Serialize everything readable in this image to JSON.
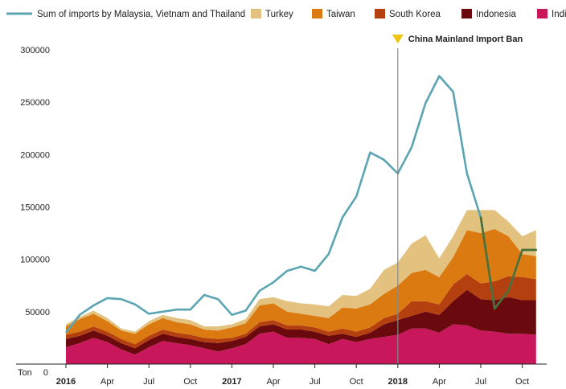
{
  "chart_data": {
    "type": "area",
    "title": "",
    "ylabel": "Ton",
    "ylim": [
      0,
      300000
    ],
    "y_ticks": [
      0,
      50000,
      100000,
      150000,
      200000,
      250000,
      300000
    ],
    "x_ticks": [
      {
        "month": "2016-01",
        "label": "2016",
        "bold": true
      },
      {
        "month": "2016-04",
        "label": "Apr",
        "bold": false
      },
      {
        "month": "2016-07",
        "label": "Jul",
        "bold": false
      },
      {
        "month": "2016-10",
        "label": "Oct",
        "bold": false
      },
      {
        "month": "2017-01",
        "label": "2017",
        "bold": true
      },
      {
        "month": "2017-04",
        "label": "Apr",
        "bold": false
      },
      {
        "month": "2017-07",
        "label": "Jul",
        "bold": false
      },
      {
        "month": "2017-10",
        "label": "Oct",
        "bold": false
      },
      {
        "month": "2018-01",
        "label": "2018",
        "bold": true
      },
      {
        "month": "2018-04",
        "label": "Apr",
        "bold": false
      },
      {
        "month": "2018-07",
        "label": "Jul",
        "bold": false
      },
      {
        "month": "2018-10",
        "label": "Oct",
        "bold": false
      }
    ],
    "months": [
      "2016-01",
      "2016-02",
      "2016-03",
      "2016-04",
      "2016-05",
      "2016-06",
      "2016-07",
      "2016-08",
      "2016-09",
      "2016-10",
      "2016-11",
      "2016-12",
      "2017-01",
      "2017-02",
      "2017-03",
      "2017-04",
      "2017-05",
      "2017-06",
      "2017-07",
      "2017-08",
      "2017-09",
      "2017-10",
      "2017-11",
      "2017-12",
      "2018-01",
      "2018-02",
      "2018-03",
      "2018-04",
      "2018-05",
      "2018-06",
      "2018-07",
      "2018-08",
      "2018-09",
      "2018-10",
      "2018-11"
    ],
    "stacked_series": [
      {
        "name": "India",
        "color": "#c8175b",
        "values": [
          16000,
          20000,
          25000,
          21000,
          14000,
          9000,
          16000,
          22000,
          20000,
          18000,
          15000,
          12000,
          15000,
          19000,
          29000,
          31000,
          25000,
          25000,
          24000,
          19000,
          24000,
          21000,
          24000,
          26000,
          28000,
          34000,
          34000,
          30000,
          38000,
          37000,
          32000,
          31000,
          29000,
          29000,
          28000
        ]
      },
      {
        "name": "Indonesia",
        "color": "#6b0a0e",
        "values": [
          8000,
          7000,
          7000,
          6000,
          6000,
          6000,
          7000,
          7000,
          6000,
          6000,
          6000,
          8000,
          7000,
          7000,
          7000,
          7000,
          8000,
          8000,
          7000,
          8000,
          5000,
          5000,
          6000,
          12000,
          14000,
          12000,
          16000,
          17000,
          22000,
          34000,
          30000,
          30000,
          35000,
          32000,
          33000
        ]
      },
      {
        "name": "South Korea",
        "color": "#b5400f",
        "values": [
          4000,
          4000,
          4000,
          4000,
          4000,
          4000,
          4000,
          4000,
          4000,
          4000,
          4000,
          4000,
          3000,
          3000,
          4000,
          4000,
          4000,
          4000,
          4000,
          4000,
          5000,
          5000,
          5000,
          6000,
          6000,
          14000,
          10000,
          10000,
          16000,
          15000,
          15000,
          18000,
          20000,
          22000,
          20000
        ]
      },
      {
        "name": "Taiwan",
        "color": "#dc7a12",
        "values": [
          8000,
          12000,
          12000,
          10000,
          8000,
          10000,
          11000,
          11000,
          10000,
          10000,
          8000,
          8000,
          10000,
          10000,
          16000,
          16000,
          13000,
          11000,
          11000,
          13000,
          20000,
          22000,
          22000,
          23000,
          27000,
          27000,
          30000,
          26000,
          26000,
          42000,
          48000,
          50000,
          38000,
          22000,
          22000
        ]
      },
      {
        "name": "Turkey",
        "color": "#e2c27e",
        "values": [
          2000,
          2000,
          3000,
          3000,
          2000,
          2000,
          3000,
          3000,
          4000,
          4000,
          3000,
          4000,
          3000,
          4000,
          6000,
          6000,
          10000,
          10000,
          11000,
          11000,
          12000,
          12000,
          15000,
          23000,
          22000,
          28000,
          33000,
          18000,
          20000,
          19000,
          22000,
          18000,
          14000,
          17000,
          25000
        ]
      }
    ],
    "line_series": {
      "name": "Sum of imports by Malaysia, Vietnam and Thailand",
      "color": "#5ba5b3",
      "values": [
        30000,
        47000,
        56000,
        63000,
        62000,
        57000,
        48000,
        50000,
        52000,
        52000,
        66000,
        62000,
        47000,
        51000,
        70000,
        78000,
        89000,
        93000,
        89000,
        105000,
        140000,
        160000,
        202000,
        195000,
        182000,
        207000,
        249000,
        275000,
        260000,
        182000,
        140000,
        53000,
        70000,
        109000,
        109000
      ],
      "overlap_color": "#4a6e38"
    },
    "annotation": {
      "month": "2018-01",
      "label": "China Mainland Import Ban",
      "marker_color": "#f2c40f"
    },
    "grid": false,
    "legend_position": "top"
  }
}
